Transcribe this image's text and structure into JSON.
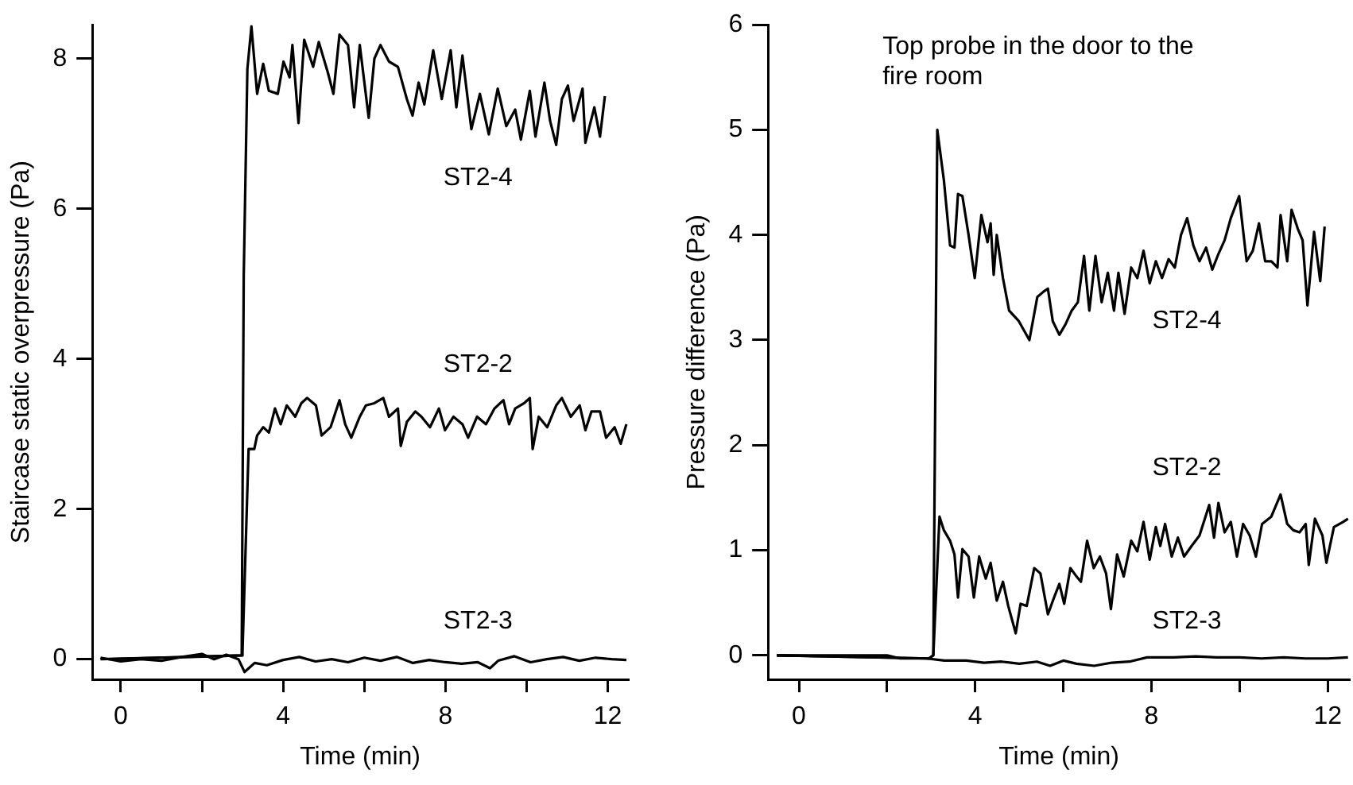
{
  "chart_data": [
    {
      "type": "line",
      "xlabel": "Time (min)",
      "ylabel": "Staircase static overpressure (Pa)",
      "xlim": [
        -0.7,
        12.5
      ],
      "ylim": [
        -0.27,
        8.45
      ],
      "xticks": [
        0,
        {
          "value": 2,
          "label": null
        },
        4,
        {
          "value": 6,
          "label": null
        },
        8,
        {
          "value": 10,
          "label": null
        },
        12
      ],
      "yticks": [
        0,
        2,
        4,
        6,
        8
      ],
      "grid": false,
      "legend": false,
      "marker": "none",
      "line_style": "solid",
      "series": [
        {
          "name": "ST2-4",
          "color": "#000000",
          "x": [
            -0.3,
            2.98,
            3.03,
            3.12,
            3.22,
            3.36,
            3.51,
            3.65,
            3.87,
            4.01,
            4.16,
            4.23,
            4.38,
            4.52,
            4.74,
            4.88,
            5.1,
            5.24,
            5.39,
            5.6,
            5.75,
            5.89,
            6.11,
            6.25,
            6.4,
            6.61,
            6.83,
            7.05,
            7.19,
            7.34,
            7.48,
            7.7,
            7.91,
            8.13,
            8.27,
            8.42,
            8.64,
            8.85,
            9.07,
            9.29,
            9.5,
            9.72,
            9.86,
            10.08,
            10.22,
            10.44,
            10.58,
            10.73,
            10.87,
            11.02,
            11.16,
            11.38,
            11.45,
            11.67,
            11.81,
            11.93
          ],
          "values": [
            0,
            0.05,
            5.1,
            7.86,
            8.43,
            7.53,
            7.93,
            7.57,
            7.53,
            7.96,
            7.75,
            8.18,
            7.14,
            8.25,
            7.89,
            8.22,
            7.82,
            7.53,
            8.32,
            8.18,
            7.35,
            8.18,
            7.21,
            8.0,
            8.18,
            7.96,
            7.89,
            7.46,
            7.24,
            7.68,
            7.39,
            8.11,
            7.46,
            8.11,
            7.35,
            8.04,
            7.06,
            7.53,
            6.99,
            7.6,
            7.1,
            7.32,
            6.92,
            7.57,
            6.96,
            7.68,
            7.17,
            6.85,
            7.46,
            7.64,
            7.17,
            7.6,
            6.88,
            7.35,
            6.96,
            7.5
          ]
        },
        {
          "name": "ST2-2",
          "color": "#000000",
          "x": [
            -0.5,
            2.98,
            3.0,
            3.15,
            3.29,
            3.36,
            3.51,
            3.65,
            3.8,
            3.94,
            4.09,
            4.3,
            4.45,
            4.59,
            4.81,
            4.95,
            5.17,
            5.39,
            5.53,
            5.68,
            5.89,
            6.04,
            6.25,
            6.47,
            6.61,
            6.83,
            6.9,
            7.05,
            7.26,
            7.41,
            7.62,
            7.84,
            7.99,
            8.2,
            8.42,
            8.56,
            8.78,
            9.0,
            9.21,
            9.43,
            9.57,
            9.72,
            9.94,
            10.08,
            10.15,
            10.3,
            10.51,
            10.73,
            10.87,
            11.09,
            11.31,
            11.45,
            11.6,
            11.81,
            11.96,
            12.17,
            12.32,
            12.46
          ],
          "values": [
            0,
            0.05,
            0.1,
            2.8,
            2.8,
            2.98,
            3.09,
            3.02,
            3.34,
            3.13,
            3.38,
            3.23,
            3.41,
            3.48,
            3.38,
            2.98,
            3.09,
            3.45,
            3.13,
            2.95,
            3.23,
            3.38,
            3.41,
            3.48,
            3.23,
            3.34,
            2.84,
            3.16,
            3.3,
            3.23,
            3.09,
            3.34,
            3.05,
            3.23,
            3.13,
            2.95,
            3.23,
            3.13,
            3.34,
            3.45,
            3.13,
            3.34,
            3.41,
            3.48,
            2.8,
            3.23,
            3.09,
            3.38,
            3.48,
            3.23,
            3.38,
            3.05,
            3.3,
            3.3,
            2.95,
            3.09,
            2.87,
            3.13
          ]
        },
        {
          "name": "ST2-3",
          "color": "#000000",
          "x": [
            -0.5,
            0.0,
            0.5,
            1.0,
            1.5,
            2.0,
            2.3,
            2.6,
            2.9,
            3.05,
            3.3,
            3.6,
            4.0,
            4.4,
            4.8,
            5.2,
            5.6,
            6.0,
            6.4,
            6.8,
            7.2,
            7.6,
            8.0,
            8.4,
            8.8,
            9.1,
            9.3,
            9.7,
            10.1,
            10.5,
            10.9,
            11.3,
            11.7,
            12.1,
            12.46
          ],
          "values": [
            0.02,
            -0.03,
            0.0,
            -0.02,
            0.03,
            0.07,
            0.0,
            0.06,
            0.0,
            -0.17,
            -0.05,
            -0.08,
            -0.01,
            0.03,
            -0.03,
            0.0,
            -0.04,
            0.02,
            -0.02,
            0.03,
            -0.05,
            -0.01,
            -0.04,
            -0.06,
            -0.04,
            -0.12,
            -0.02,
            0.04,
            -0.04,
            0.0,
            0.03,
            -0.02,
            0.02,
            0.0,
            -0.01
          ]
        }
      ]
    },
    {
      "type": "line",
      "xlabel": "Time (min)",
      "ylabel": "Pressure difference (Pa)",
      "xlim": [
        -0.7,
        12.5
      ],
      "ylim": [
        -0.23,
        6
      ],
      "xticks": [
        0,
        {
          "value": 2,
          "label": null
        },
        4,
        {
          "value": 6,
          "label": null
        },
        8,
        {
          "value": 10,
          "label": null
        },
        12
      ],
      "yticks": [
        0,
        1,
        2,
        3,
        4,
        5,
        6
      ],
      "grid": false,
      "legend": false,
      "marker": "none",
      "line_style": "solid",
      "annotations": [
        "Top probe in the door to the fire room"
      ],
      "series": [
        {
          "name": "ST2-4",
          "color": "#000000",
          "x": [
            -0.5,
            2.95,
            3.05,
            3.14,
            3.29,
            3.43,
            3.53,
            3.61,
            3.71,
            3.85,
            3.99,
            4.14,
            4.28,
            4.35,
            4.42,
            4.49,
            4.63,
            4.77,
            4.99,
            5.23,
            5.41,
            5.55,
            5.65,
            5.76,
            5.91,
            6.05,
            6.19,
            6.33,
            6.47,
            6.59,
            6.73,
            6.87,
            7.01,
            7.15,
            7.25,
            7.39,
            7.54,
            7.68,
            7.82,
            7.96,
            8.1,
            8.24,
            8.39,
            8.53,
            8.67,
            8.81,
            8.95,
            9.09,
            9.24,
            9.38,
            9.52,
            9.66,
            9.8,
            9.99,
            10.16,
            10.3,
            10.44,
            10.58,
            10.72,
            10.86,
            10.93,
            11.08,
            11.18,
            11.32,
            11.43,
            11.54,
            11.69,
            11.83,
            11.93
          ],
          "values": [
            0,
            -0.03,
            0,
            5.0,
            4.52,
            3.9,
            3.88,
            4.39,
            4.37,
            4.0,
            3.59,
            4.19,
            3.93,
            4.11,
            3.62,
            4.0,
            3.59,
            3.28,
            3.18,
            3.0,
            3.41,
            3.46,
            3.49,
            3.18,
            3.05,
            3.15,
            3.28,
            3.36,
            3.8,
            3.28,
            3.8,
            3.36,
            3.64,
            3.28,
            3.64,
            3.25,
            3.69,
            3.59,
            3.85,
            3.54,
            3.75,
            3.59,
            3.77,
            3.69,
            4.0,
            4.16,
            3.9,
            3.75,
            3.88,
            3.67,
            3.82,
            3.95,
            4.16,
            4.37,
            3.75,
            3.85,
            4.11,
            3.75,
            3.75,
            3.69,
            4.19,
            3.75,
            4.24,
            4.06,
            3.95,
            3.33,
            4.03,
            3.56,
            4.08
          ]
        },
        {
          "name": "ST2-2",
          "color": "#000000",
          "x": [
            -0.5,
            2.95,
            3.05,
            3.19,
            3.29,
            3.43,
            3.53,
            3.61,
            3.71,
            3.85,
            3.97,
            4.09,
            4.24,
            4.35,
            4.49,
            4.63,
            4.75,
            4.92,
            5.03,
            5.17,
            5.34,
            5.48,
            5.65,
            5.79,
            5.91,
            6.02,
            6.16,
            6.3,
            6.4,
            6.54,
            6.69,
            6.83,
            6.97,
            7.08,
            7.22,
            7.37,
            7.54,
            7.68,
            7.82,
            7.96,
            8.1,
            8.2,
            8.31,
            8.46,
            8.6,
            8.74,
            8.91,
            9.09,
            9.31,
            9.42,
            9.52,
            9.66,
            9.8,
            9.94,
            10.08,
            10.23,
            10.37,
            10.51,
            10.72,
            10.93,
            11.08,
            11.22,
            11.36,
            11.5,
            11.57,
            11.71,
            11.88,
            11.97,
            12.14,
            12.35,
            12.46
          ],
          "values": [
            0,
            -0.03,
            0,
            1.32,
            1.19,
            1.09,
            0.96,
            0.55,
            1.01,
            0.94,
            0.55,
            0.94,
            0.73,
            0.88,
            0.52,
            0.7,
            0.47,
            0.21,
            0.49,
            0.47,
            0.83,
            0.78,
            0.39,
            0.55,
            0.68,
            0.49,
            0.83,
            0.75,
            0.7,
            1.09,
            0.83,
            0.94,
            0.78,
            0.44,
            0.96,
            0.75,
            1.09,
            0.99,
            1.27,
            0.91,
            1.22,
            1.04,
            1.25,
            0.94,
            1.12,
            0.94,
            1.04,
            1.14,
            1.43,
            1.12,
            1.45,
            1.17,
            1.27,
            0.94,
            1.25,
            1.14,
            0.94,
            1.25,
            1.32,
            1.53,
            1.25,
            1.19,
            1.17,
            1.25,
            0.86,
            1.3,
            1.14,
            0.88,
            1.22,
            1.27,
            1.3
          ]
        },
        {
          "name": "ST2-3",
          "color": "#000000",
          "x": [
            -0.5,
            2.0,
            2.3,
            2.9,
            3.3,
            3.8,
            4.2,
            4.6,
            5.0,
            5.4,
            5.7,
            6.0,
            6.3,
            6.7,
            7.1,
            7.5,
            7.9,
            8.5,
            9.0,
            9.5,
            10.0,
            10.5,
            11.0,
            11.5,
            12.0,
            12.46
          ],
          "values": [
            0.0,
            0.0,
            -0.03,
            -0.03,
            -0.05,
            -0.05,
            -0.07,
            -0.06,
            -0.08,
            -0.06,
            -0.1,
            -0.05,
            -0.08,
            -0.1,
            -0.07,
            -0.06,
            -0.02,
            -0.02,
            -0.01,
            -0.02,
            -0.02,
            -0.03,
            -0.02,
            -0.03,
            -0.03,
            -0.02
          ]
        }
      ]
    }
  ]
}
